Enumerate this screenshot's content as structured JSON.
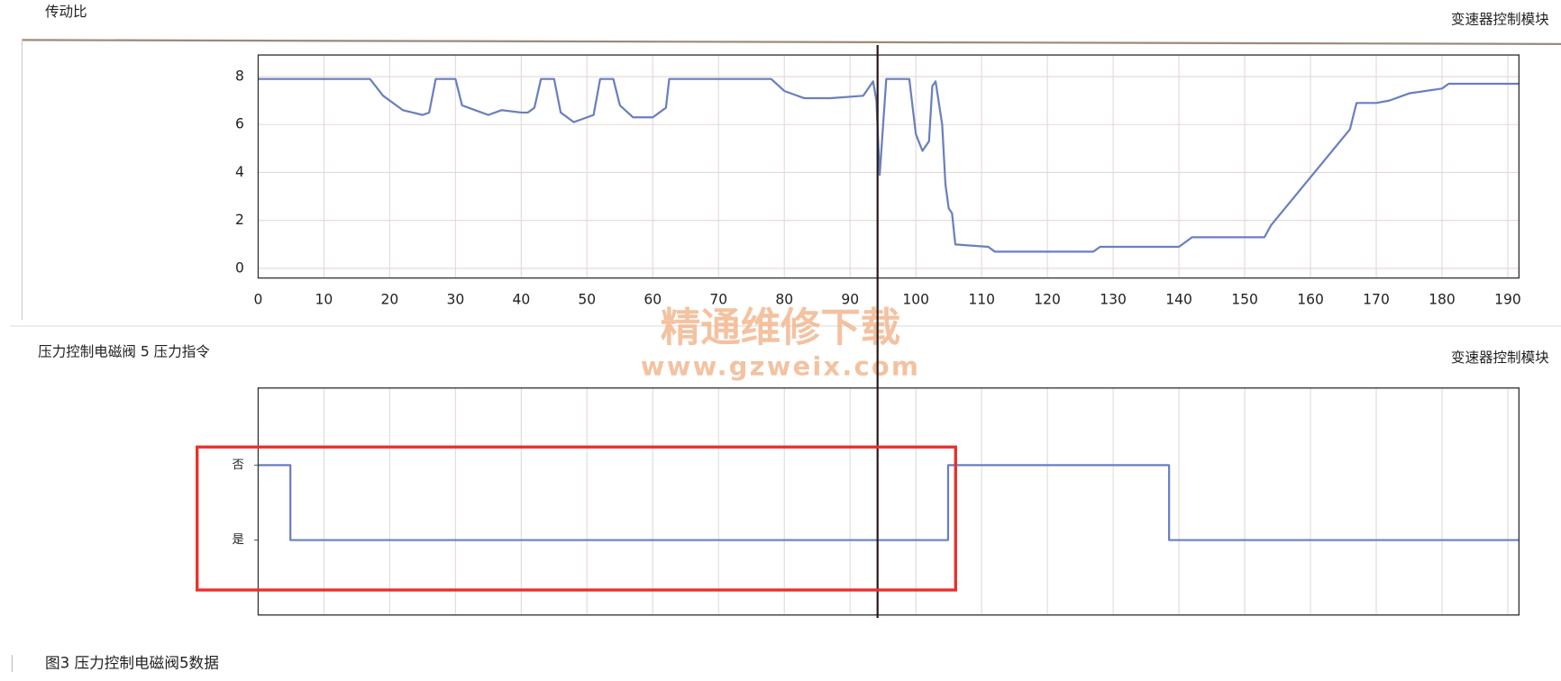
{
  "chart_data": [
    {
      "type": "line",
      "title": "传动比",
      "subtitle": "变速器控制模块",
      "x": [
        0,
        17,
        19,
        22,
        25,
        26,
        27,
        30,
        31,
        33,
        35,
        37,
        40,
        41,
        42,
        43,
        45,
        46,
        48,
        50,
        51,
        52,
        54,
        55,
        57,
        60,
        61,
        62,
        62.5,
        78,
        80,
        83,
        87,
        92,
        93.5,
        94,
        94.5,
        95.5,
        99,
        100,
        101,
        102,
        102.5,
        103,
        104,
        104.5,
        105,
        105.5,
        106,
        111,
        112,
        127,
        128,
        140,
        142,
        153,
        154,
        166,
        167,
        170,
        172,
        175,
        180,
        181,
        191.7
      ],
      "series": [
        {
          "color": "#6a7fbf",
          "values": [
            7.9,
            7.9,
            7.2,
            6.6,
            6.4,
            6.5,
            7.9,
            7.9,
            6.8,
            6.6,
            6.4,
            6.6,
            6.5,
            6.5,
            6.7,
            7.9,
            7.9,
            6.5,
            6.1,
            6.3,
            6.4,
            7.9,
            7.9,
            6.8,
            6.3,
            6.3,
            6.5,
            6.7,
            7.9,
            7.9,
            7.4,
            7.1,
            7.1,
            7.2,
            7.8,
            7.0,
            3.9,
            7.9,
            7.9,
            5.6,
            4.9,
            5.3,
            7.6,
            7.8,
            6.0,
            3.5,
            2.5,
            2.3,
            1.0,
            0.9,
            0.7,
            0.7,
            0.9,
            0.9,
            1.3,
            1.3,
            1.8,
            5.8,
            6.9,
            6.9,
            7.0,
            7.3,
            7.5,
            7.7,
            7.7
          ]
        }
      ],
      "xlim": [
        0,
        191.7
      ],
      "xticks": [
        0,
        10,
        20,
        30,
        40,
        50,
        60,
        70,
        80,
        90,
        100,
        110,
        120,
        130,
        140,
        150,
        160,
        170,
        180,
        190
      ],
      "ylim": [
        -0.4,
        8.9
      ],
      "yticks": [
        0,
        2,
        4,
        6,
        8
      ],
      "grid": true
    },
    {
      "type": "line",
      "title": "压力控制电磁阀 5 压力指令",
      "subtitle": "变速器控制模块",
      "x": [
        0,
        4.9,
        4.9,
        104.9,
        104.9,
        138.5,
        138.5,
        191.7
      ],
      "series": [
        {
          "color": "#6a7fbf",
          "values": [
            1,
            1,
            0,
            0,
            1,
            1,
            0,
            0
          ]
        }
      ],
      "xlim": [
        0,
        191.7
      ],
      "ylim": [
        -1,
        2.03
      ],
      "yticks": [
        {
          "value": 1,
          "label": "否"
        },
        {
          "value": 0,
          "label": "是"
        }
      ],
      "grid": true
    }
  ],
  "caption": "图3 压力控制电磁阀5数据",
  "watermark": {
    "name": "精通维修下载",
    "url": "www.gzweix.com"
  }
}
